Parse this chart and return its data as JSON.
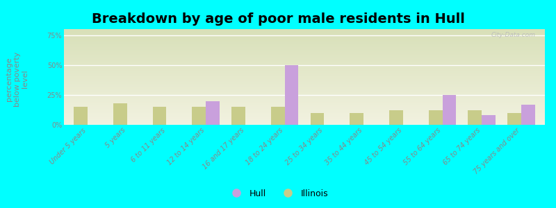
{
  "title": "Breakdown by age of poor male residents in Hull",
  "categories": [
    "Under 5 years",
    "5 years",
    "6 to 11 years",
    "12 to 14 years",
    "16 and 17 years",
    "18 to 24 years",
    "25 to 34 years",
    "35 to 44 years",
    "45 to 54 years",
    "55 to 64 years",
    "65 to 74 years",
    "75 years and over"
  ],
  "hull_values": [
    0,
    0,
    0,
    20,
    0,
    50,
    0,
    0,
    0,
    25,
    8,
    17
  ],
  "illinois_values": [
    15,
    18,
    15,
    15,
    15,
    15,
    10,
    10,
    12,
    12,
    12,
    10
  ],
  "hull_color": "#c9a0dc",
  "illinois_color": "#c8cc8a",
  "ylabel": "percentage\nbelow poverty\nlevel",
  "yticks": [
    0,
    25,
    50,
    75
  ],
  "ytick_labels": [
    "0%",
    "25%",
    "50%",
    "75%"
  ],
  "ylim": [
    0,
    80
  ],
  "background_color": "#00ffff",
  "title_fontsize": 14,
  "axis_label_fontsize": 8,
  "tick_fontsize": 7,
  "legend_fontsize": 9,
  "bar_width": 0.35,
  "watermark": "City-Data.com"
}
